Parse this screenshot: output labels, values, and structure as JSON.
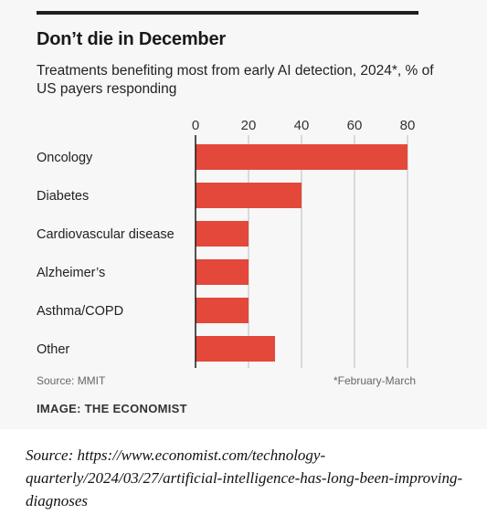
{
  "chart_data": {
    "type": "bar",
    "orientation": "horizontal",
    "title": "Don’t die in December",
    "subtitle": "Treatments benefiting most from early AI detection, 2024*, % of US payers responding",
    "categories": [
      "Oncology",
      "Diabetes",
      "Cardiovascular disease",
      "Alzheimer’s",
      "Asthma/COPD",
      "Other"
    ],
    "values": [
      80,
      40,
      20,
      20,
      20,
      30
    ],
    "xlim": [
      0,
      80
    ],
    "xticks": [
      "0",
      "20",
      "40",
      "60",
      "80"
    ],
    "axis_position": "top",
    "grid": true,
    "bar_color": "#e3483b"
  },
  "source": "Source: MMIT",
  "note": "*February-March",
  "image_credit": "IMAGE: THE ECONOMIST",
  "caption": "Source: https://www.economist.com/technology-quarterly/2024/03/27/artificial-intelligence-has-long-been-improving-diagnoses"
}
